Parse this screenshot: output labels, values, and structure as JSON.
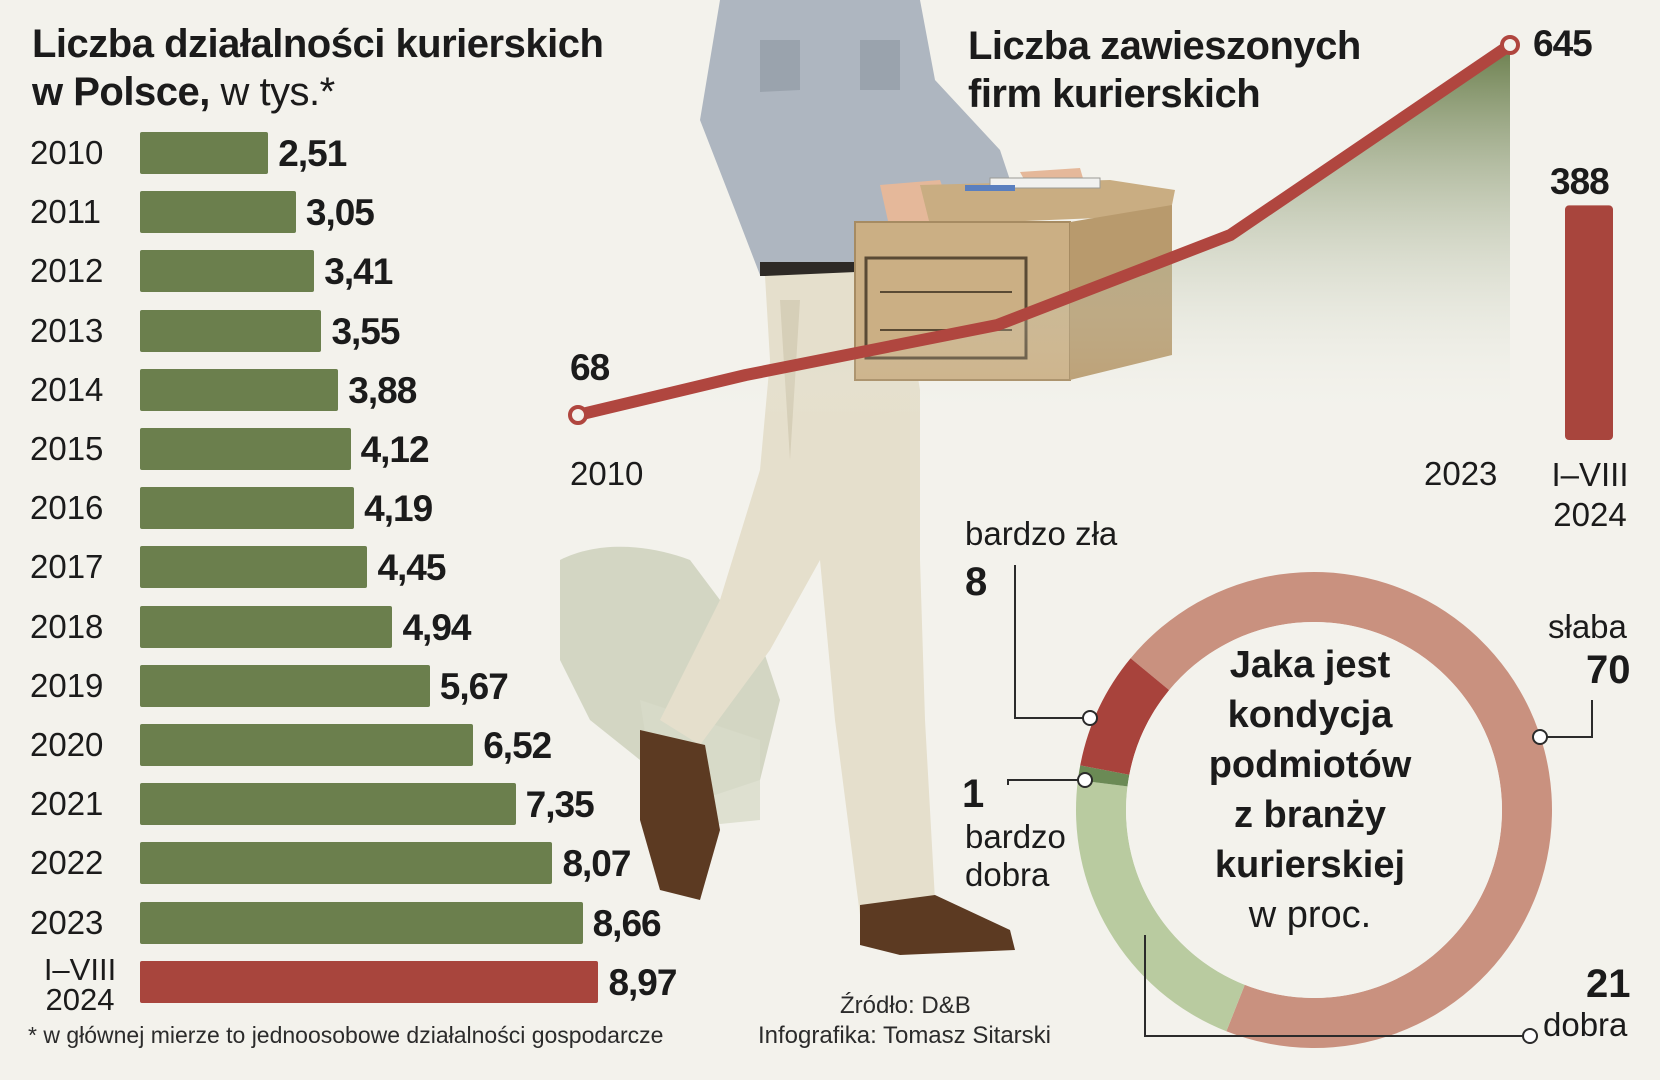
{
  "left_chart": {
    "title_bold_1": "Liczba działalności kurierskich",
    "title_bold_2": "w Polsce,",
    "title_unit": "w tys.*",
    "footnote": "* w głównej mierze to jednoosobowe działalności gospodarcze"
  },
  "line_chart_titles": {
    "line1": "Liczba zawieszonych",
    "line2": "firm kurierskich"
  },
  "donut_titles": {
    "line1": "Jaka jest",
    "line2": "kondycja",
    "line3": "podmiotów",
    "line4": "z branży",
    "line5": "kurierskiej",
    "unit": "w proc."
  },
  "credits": {
    "source": "Źródło: D&B",
    "author": "Infografika: Tomasz Sitarski"
  },
  "colors": {
    "bar_green": "#6b7f4d",
    "bar_red": "#a8453d",
    "line_red": "#b0463f",
    "area_green": "#6b7f4d",
    "donut_pink": "#c9917f",
    "donut_lightgreen": "#b9cba0",
    "donut_darkred": "#a8433c",
    "donut_darkgreen": "#6b8a55"
  },
  "chart_data": [
    {
      "type": "bar",
      "title": "Liczba działalności kurierskich w Polsce, w tys.*",
      "categories": [
        "2010",
        "2011",
        "2012",
        "2013",
        "2014",
        "2015",
        "2016",
        "2017",
        "2018",
        "2019",
        "2020",
        "2021",
        "2022",
        "2023",
        "I–VIII 2024"
      ],
      "values": [
        2.51,
        3.05,
        3.41,
        3.55,
        3.88,
        4.12,
        4.19,
        4.45,
        4.94,
        5.67,
        6.52,
        7.35,
        8.07,
        8.66,
        8.97
      ],
      "value_labels": [
        "2,51",
        "3,05",
        "3,41",
        "3,55",
        "3,88",
        "4,12",
        "4,19",
        "4,45",
        "4,94",
        "5,67",
        "6,52",
        "7,35",
        "8,07",
        "8,66",
        "8,97"
      ],
      "highlight_last": true
    },
    {
      "type": "line",
      "title": "Liczba zawieszonych firm kurierskich",
      "x_start": "2010",
      "x_end": "2023",
      "start_value": 68,
      "end_value": 645,
      "start_label": "68",
      "end_label": "645",
      "extra_bar": {
        "category_line1": "I–VIII",
        "category_line2": "2024",
        "value": 388,
        "label": "388"
      }
    },
    {
      "type": "pie",
      "title": "Jaka jest kondycja podmiotów z branży kurierskiej w proc.",
      "slices": [
        {
          "name": "słaba",
          "value": 70,
          "label": "70"
        },
        {
          "name": "dobra",
          "value": 21,
          "label": "21"
        },
        {
          "name_line1": "bardzo",
          "name_line2": "dobra",
          "value": 1,
          "label": "1"
        },
        {
          "name": "bardzo zła",
          "value": 8,
          "label": "8"
        }
      ]
    }
  ]
}
